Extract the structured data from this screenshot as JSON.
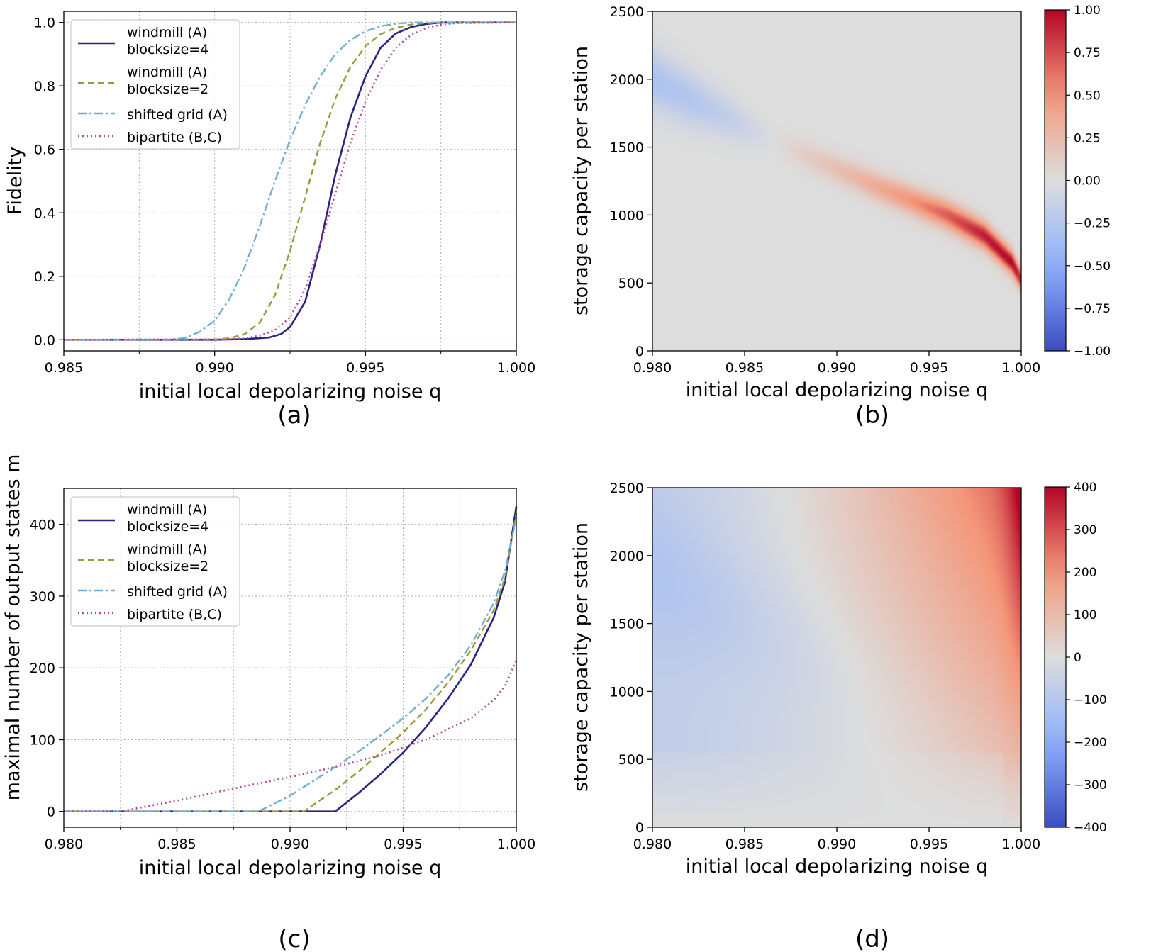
{
  "figure": {
    "panels": [
      {
        "id": "a",
        "caption": "(a)"
      },
      {
        "id": "b",
        "caption": "(b)"
      },
      {
        "id": "c",
        "caption": "(c)"
      },
      {
        "id": "d",
        "caption": "(d)"
      }
    ]
  },
  "colors": {
    "windmill4": "#2b2582",
    "windmill2": "#9a9a38",
    "shifted": "#6fb0d2",
    "bipartite": "#b347a0",
    "grid": "#b0b0b0",
    "neutral": "#dcdcdc"
  },
  "chart_data": [
    {
      "panel": "a",
      "type": "line",
      "xlabel": "initial local depolarizing noise q",
      "ylabel": "Fidelity",
      "xlim": [
        0.985,
        1.0
      ],
      "ylim": [
        -0.035,
        1.035
      ],
      "xticks": [
        0.985,
        0.99,
        0.995,
        1.0
      ],
      "xtick_labels": [
        "0.985",
        "0.990",
        "0.995",
        "1.000"
      ],
      "yticks": [
        0.0,
        0.2,
        0.4,
        0.6,
        0.8,
        1.0
      ],
      "ytick_labels": [
        "0.0",
        "0.2",
        "0.4",
        "0.6",
        "0.8",
        "1.0"
      ],
      "legend": [
        "windmill (A)\nblocksize=4",
        "windmill (A)\nblocksize=2",
        "shifted grid (A)",
        "bipartite (B,C)"
      ],
      "legend_location": "upper-left",
      "grid": true,
      "series": [
        {
          "name": "windmill (A) blocksize=4",
          "x": [
            0.985,
            0.99,
            0.991,
            0.9918,
            0.9922,
            0.9925,
            0.993,
            0.9935,
            0.994,
            0.9945,
            0.995,
            0.9955,
            0.996,
            0.9965,
            0.997,
            0.9975,
            1.0
          ],
          "y": [
            0,
            0,
            0.002,
            0.007,
            0.018,
            0.04,
            0.12,
            0.3,
            0.52,
            0.7,
            0.83,
            0.92,
            0.965,
            0.985,
            0.995,
            1.0,
            1.0
          ]
        },
        {
          "name": "windmill (A) blocksize=2",
          "x": [
            0.985,
            0.99,
            0.9905,
            0.991,
            0.9915,
            0.992,
            0.9925,
            0.993,
            0.9935,
            0.994,
            0.9945,
            0.995,
            0.9955,
            0.996,
            0.9965,
            0.997,
            1.0
          ],
          "y": [
            0,
            0.001,
            0.005,
            0.018,
            0.055,
            0.14,
            0.28,
            0.45,
            0.62,
            0.76,
            0.86,
            0.925,
            0.963,
            0.983,
            0.993,
            0.998,
            1.0
          ]
        },
        {
          "name": "shifted grid (A)",
          "x": [
            0.985,
            0.9885,
            0.989,
            0.9895,
            0.99,
            0.9905,
            0.991,
            0.9915,
            0.992,
            0.9925,
            0.993,
            0.9935,
            0.994,
            0.9945,
            0.995,
            0.9955,
            0.996,
            0.9965,
            1.0
          ],
          "y": [
            0,
            0.001,
            0.005,
            0.025,
            0.06,
            0.13,
            0.23,
            0.36,
            0.5,
            0.63,
            0.74,
            0.83,
            0.9,
            0.945,
            0.972,
            0.988,
            0.996,
            1.0,
            1.0
          ]
        },
        {
          "name": "bipartite (B,C)",
          "x": [
            0.985,
            0.9905,
            0.991,
            0.9915,
            0.992,
            0.9925,
            0.993,
            0.9935,
            0.994,
            0.9945,
            0.995,
            0.9955,
            0.996,
            0.9965,
            0.997,
            0.9975,
            0.998,
            1.0
          ],
          "y": [
            0,
            0.001,
            0.005,
            0.013,
            0.03,
            0.07,
            0.16,
            0.3,
            0.46,
            0.62,
            0.75,
            0.85,
            0.92,
            0.96,
            0.982,
            0.993,
            0.998,
            1.0
          ]
        }
      ]
    },
    {
      "panel": "b",
      "type": "heatmap",
      "xlabel": "initial local depolarizing noise q",
      "ylabel": "storage capacity per station",
      "xlim": [
        0.98,
        1.0
      ],
      "ylim": [
        0,
        2500
      ],
      "xticks": [
        0.98,
        0.985,
        0.99,
        0.995,
        1.0
      ],
      "xtick_labels": [
        "0.980",
        "0.985",
        "0.990",
        "0.995",
        "1.000"
      ],
      "yticks": [
        0,
        500,
        1000,
        1500,
        2000,
        2500
      ],
      "ytick_labels": [
        "0",
        "500",
        "1000",
        "1500",
        "2000",
        "2500"
      ],
      "colorbar": {
        "min": -1.0,
        "max": 1.0,
        "ticks": [
          -1.0,
          -0.75,
          -0.5,
          -0.25,
          0.0,
          0.25,
          0.5,
          0.75,
          1.0
        ],
        "tick_labels": [
          "−1.00",
          "−0.75",
          "−0.50",
          "−0.25",
          "0.00",
          "0.25",
          "0.50",
          "0.75",
          "1.00"
        ],
        "colormap": "coolwarm"
      },
      "ridge_q": [
        0.98,
        0.982,
        0.984,
        0.986,
        0.988,
        0.99,
        0.992,
        0.994,
        0.996,
        0.998,
        0.9995,
        1.0
      ],
      "ridge_storage": [
        2000,
        1860,
        1720,
        1590,
        1460,
        1340,
        1220,
        1110,
        1000,
        850,
        650,
        520
      ],
      "ridge_value": [
        -0.3,
        -0.26,
        -0.18,
        -0.05,
        0.1,
        0.22,
        0.35,
        0.5,
        0.7,
        0.92,
        1.0,
        0.85
      ],
      "ridge_width": [
        210,
        190,
        150,
        110,
        95,
        95,
        100,
        100,
        100,
        95,
        85,
        75
      ]
    },
    {
      "panel": "c",
      "type": "line",
      "xlabel": "initial local depolarizing noise q",
      "ylabel": "maximal number of output states m",
      "xlim": [
        0.98,
        1.0
      ],
      "ylim": [
        -22,
        450
      ],
      "xticks": [
        0.98,
        0.985,
        0.99,
        0.995,
        1.0
      ],
      "xtick_labels": [
        "0.980",
        "0.985",
        "0.990",
        "0.995",
        "1.000"
      ],
      "yticks": [
        0,
        100,
        200,
        300,
        400
      ],
      "ytick_labels": [
        "0",
        "100",
        "200",
        "300",
        "400"
      ],
      "legend": [
        "windmill (A)\nblocksize=4",
        "windmill (A)\nblocksize=2",
        "shifted grid (A)",
        "bipartite (B,C)"
      ],
      "legend_location": "upper-left",
      "grid": true,
      "series": [
        {
          "name": "windmill (A) blocksize=4",
          "x": [
            0.98,
            0.992,
            0.993,
            0.994,
            0.995,
            0.996,
            0.997,
            0.998,
            0.999,
            0.9995,
            1.0
          ],
          "y": [
            0,
            0,
            25,
            52,
            82,
            117,
            158,
            205,
            270,
            320,
            425
          ]
        },
        {
          "name": "windmill (A) blocksize=2",
          "x": [
            0.98,
            0.9906,
            0.992,
            0.993,
            0.994,
            0.995,
            0.996,
            0.997,
            0.998,
            0.999,
            0.9995,
            1.0
          ],
          "y": [
            0,
            0,
            30,
            55,
            82,
            110,
            142,
            180,
            225,
            280,
            325,
            415
          ]
        },
        {
          "name": "shifted grid (A)",
          "x": [
            0.98,
            0.9886,
            0.99,
            0.991,
            0.992,
            0.993,
            0.994,
            0.995,
            0.996,
            0.997,
            0.998,
            0.999,
            0.9995,
            1.0
          ],
          "y": [
            0,
            0,
            22,
            42,
            62,
            83,
            106,
            130,
            157,
            190,
            232,
            290,
            335,
            410
          ]
        },
        {
          "name": "bipartite (B,C)",
          "x": [
            0.98,
            0.9825,
            0.985,
            0.9875,
            0.99,
            0.992,
            0.994,
            0.996,
            0.998,
            0.999,
            0.9995,
            1.0
          ],
          "y": [
            0,
            0,
            15,
            32,
            48,
            62,
            78,
            100,
            130,
            155,
            175,
            210
          ]
        }
      ]
    },
    {
      "panel": "d",
      "type": "heatmap",
      "xlabel": "initial local depolarizing noise q",
      "ylabel": "storage capacity per station",
      "xlim": [
        0.98,
        1.0
      ],
      "ylim": [
        0,
        2500
      ],
      "xticks": [
        0.98,
        0.985,
        0.99,
        0.995,
        1.0
      ],
      "xtick_labels": [
        "0.980",
        "0.985",
        "0.990",
        "0.995",
        "1.000"
      ],
      "yticks": [
        0,
        500,
        1000,
        1500,
        2000,
        2500
      ],
      "ytick_labels": [
        "0",
        "500",
        "1000",
        "1500",
        "2000",
        "2500"
      ],
      "colorbar": {
        "min": -400,
        "max": 400,
        "ticks": [
          -400,
          -300,
          -200,
          -100,
          0,
          100,
          200,
          300,
          400
        ],
        "tick_labels": [
          "−400",
          "−300",
          "−200",
          "−100",
          "0",
          "100",
          "200",
          "300",
          "400"
        ],
        "colormap": "coolwarm"
      }
    }
  ]
}
